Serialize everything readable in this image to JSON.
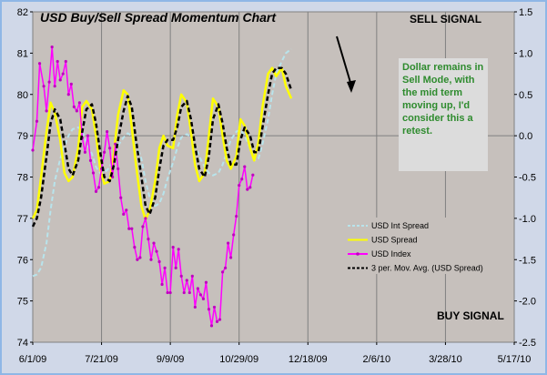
{
  "chart_data": {
    "type": "line",
    "title": "USD Buy/Sell Spread Momentum Chart",
    "annotations": {
      "sell_signal": "SELL SIGNAL",
      "buy_signal": "BUY SIGNAL",
      "note": "Dollar remains in Sell Mode, with the mid term moving up, I'd consider this a retest."
    },
    "x_tick_labels": [
      "6/1/09",
      "7/21/09",
      "9/9/09",
      "10/29/09",
      "12/18/09",
      "2/6/10",
      "3/28/10",
      "5/17/10"
    ],
    "y_left": {
      "ylim": [
        74,
        82
      ],
      "ticks": [
        74,
        75,
        76,
        77,
        78,
        79,
        80,
        81,
        82
      ]
    },
    "y_right": {
      "ylim": [
        -2.5,
        1.5
      ],
      "ticks": [
        "1.5",
        "1.0",
        "0.5",
        "0.0",
        "-0.5",
        "-1.0",
        "-1.5",
        "-2.0",
        "-2.5"
      ]
    },
    "grid": true,
    "legend_position": "center-right",
    "series": [
      {
        "name": "USD Int Spread",
        "axis": "right",
        "color": "#b8e4ec",
        "style": "dashed",
        "points": [
          [
            0,
            -1.7
          ],
          [
            3,
            -1.68
          ],
          [
            6,
            -1.6
          ],
          [
            10,
            -1.3
          ],
          [
            13,
            -0.9
          ],
          [
            16,
            -0.55
          ],
          [
            20,
            -0.28
          ],
          [
            23,
            -0.12
          ],
          [
            26,
            0.0
          ],
          [
            29,
            0.08
          ],
          [
            33,
            0.1
          ],
          [
            36,
            0.06
          ],
          [
            39,
            -0.08
          ],
          [
            43,
            -0.22
          ],
          [
            46,
            -0.38
          ],
          [
            49,
            -0.45
          ],
          [
            52,
            -0.45
          ],
          [
            56,
            -0.38
          ],
          [
            59,
            -0.25
          ],
          [
            62,
            -0.12
          ],
          [
            66,
            -0.02
          ],
          [
            69,
            0.03
          ],
          [
            72,
            0.0
          ],
          [
            75,
            -0.1
          ],
          [
            79,
            -0.28
          ],
          [
            82,
            -0.55
          ],
          [
            85,
            -0.75
          ],
          [
            89,
            -0.85
          ],
          [
            92,
            -0.82
          ],
          [
            95,
            -0.7
          ],
          [
            98,
            -0.52
          ],
          [
            102,
            -0.32
          ],
          [
            105,
            -0.15
          ],
          [
            108,
            -0.02
          ],
          [
            112,
            0.02
          ],
          [
            115,
            -0.02
          ],
          [
            118,
            -0.12
          ],
          [
            121,
            -0.25
          ],
          [
            125,
            -0.38
          ],
          [
            128,
            -0.45
          ],
          [
            131,
            -0.48
          ],
          [
            135,
            -0.45
          ],
          [
            138,
            -0.35
          ],
          [
            141,
            -0.2
          ],
          [
            144,
            -0.05
          ],
          [
            148,
            0.05
          ],
          [
            151,
            0.07
          ],
          [
            154,
            0.0
          ],
          [
            158,
            -0.15
          ],
          [
            161,
            -0.3
          ],
          [
            164,
            -0.28
          ],
          [
            167,
            -0.1
          ],
          [
            171,
            0.2
          ],
          [
            174,
            0.5
          ],
          [
            177,
            0.75
          ],
          [
            181,
            0.9
          ],
          [
            184,
            1.0
          ],
          [
            188,
            1.05
          ]
        ]
      },
      {
        "name": "USD Spread",
        "axis": "right",
        "color": "#ffff00",
        "style": "solid",
        "points": [
          [
            0,
            -1.0
          ],
          [
            3,
            -0.9
          ],
          [
            6,
            -0.5
          ],
          [
            10,
            0.05
          ],
          [
            13,
            0.4
          ],
          [
            16,
            0.28
          ],
          [
            20,
            -0.05
          ],
          [
            23,
            -0.45
          ],
          [
            26,
            -0.55
          ],
          [
            29,
            -0.5
          ],
          [
            33,
            -0.15
          ],
          [
            36,
            0.35
          ],
          [
            39,
            0.42
          ],
          [
            43,
            0.32
          ],
          [
            46,
            0.0
          ],
          [
            49,
            -0.4
          ],
          [
            52,
            -0.58
          ],
          [
            56,
            -0.55
          ],
          [
            59,
            -0.2
          ],
          [
            62,
            0.25
          ],
          [
            66,
            0.55
          ],
          [
            69,
            0.5
          ],
          [
            72,
            0.1
          ],
          [
            75,
            -0.35
          ],
          [
            79,
            -0.85
          ],
          [
            82,
            -1.02
          ],
          [
            85,
            -0.9
          ],
          [
            89,
            -0.55
          ],
          [
            92,
            -0.15
          ],
          [
            95,
            0.0
          ],
          [
            98,
            -0.12
          ],
          [
            102,
            -0.15
          ],
          [
            105,
            0.25
          ],
          [
            108,
            0.5
          ],
          [
            112,
            0.4
          ],
          [
            115,
            0.05
          ],
          [
            118,
            -0.35
          ],
          [
            121,
            -0.55
          ],
          [
            125,
            -0.45
          ],
          [
            128,
            0.0
          ],
          [
            131,
            0.45
          ],
          [
            135,
            0.35
          ],
          [
            138,
            0.0
          ],
          [
            141,
            -0.3
          ],
          [
            144,
            -0.4
          ],
          [
            148,
            -0.25
          ],
          [
            151,
            0.2
          ],
          [
            154,
            0.12
          ],
          [
            158,
            -0.15
          ],
          [
            161,
            -0.3
          ],
          [
            164,
            -0.08
          ],
          [
            167,
            0.35
          ],
          [
            171,
            0.75
          ],
          [
            174,
            0.82
          ],
          [
            177,
            0.72
          ],
          [
            181,
            0.82
          ],
          [
            184,
            0.6
          ],
          [
            188,
            0.45
          ]
        ]
      },
      {
        "name": "USD Index",
        "axis": "left",
        "color": "#ff00ff",
        "style": "solid-markers",
        "points": [
          [
            0,
            78.65
          ],
          [
            3,
            79.35
          ],
          [
            5,
            80.75
          ],
          [
            8,
            80.2
          ],
          [
            10,
            79.6
          ],
          [
            12,
            80.3
          ],
          [
            14,
            81.15
          ],
          [
            16,
            80.2
          ],
          [
            18,
            80.8
          ],
          [
            20,
            80.35
          ],
          [
            22,
            80.5
          ],
          [
            24,
            80.8
          ],
          [
            26,
            80.0
          ],
          [
            28,
            80.25
          ],
          [
            30,
            79.7
          ],
          [
            32,
            79.6
          ],
          [
            34,
            79.8
          ],
          [
            36,
            78.95
          ],
          [
            38,
            78.6
          ],
          [
            40,
            79.0
          ],
          [
            42,
            78.4
          ],
          [
            44,
            78.1
          ],
          [
            46,
            77.65
          ],
          [
            48,
            77.75
          ],
          [
            50,
            78.2
          ],
          [
            52,
            78.6
          ],
          [
            54,
            79.1
          ],
          [
            56,
            78.7
          ],
          [
            58,
            78.0
          ],
          [
            60,
            78.8
          ],
          [
            62,
            78.2
          ],
          [
            64,
            77.5
          ],
          [
            66,
            77.1
          ],
          [
            68,
            77.2
          ],
          [
            70,
            76.75
          ],
          [
            72,
            76.75
          ],
          [
            74,
            76.3
          ],
          [
            76,
            76.0
          ],
          [
            78,
            76.05
          ],
          [
            80,
            76.8
          ],
          [
            82,
            77.0
          ],
          [
            84,
            76.5
          ],
          [
            86,
            76.0
          ],
          [
            88,
            76.4
          ],
          [
            90,
            76.2
          ],
          [
            92,
            75.95
          ],
          [
            94,
            75.4
          ],
          [
            96,
            75.8
          ],
          [
            98,
            75.2
          ],
          [
            100,
            75.2
          ],
          [
            102,
            76.3
          ],
          [
            104,
            75.8
          ],
          [
            106,
            76.25
          ],
          [
            108,
            75.6
          ],
          [
            110,
            75.2
          ],
          [
            112,
            75.5
          ],
          [
            114,
            75.2
          ],
          [
            116,
            75.6
          ],
          [
            118,
            74.85
          ],
          [
            120,
            75.3
          ],
          [
            122,
            75.15
          ],
          [
            124,
            75.05
          ],
          [
            126,
            75.45
          ],
          [
            128,
            74.8
          ],
          [
            130,
            74.4
          ],
          [
            132,
            74.85
          ],
          [
            134,
            74.5
          ],
          [
            136,
            74.55
          ],
          [
            138,
            75.7
          ],
          [
            140,
            75.8
          ],
          [
            142,
            76.4
          ],
          [
            144,
            76.05
          ],
          [
            146,
            76.6
          ],
          [
            148,
            77.05
          ],
          [
            150,
            77.8
          ],
          [
            152,
            77.95
          ],
          [
            154,
            78.25
          ],
          [
            156,
            77.7
          ],
          [
            158,
            77.75
          ],
          [
            160,
            78.05
          ]
        ]
      },
      {
        "name": "3 per. Mov. Avg. (USD Spread)",
        "axis": "right",
        "color": "#000000",
        "style": "dashed",
        "points": [
          [
            0,
            -1.1
          ],
          [
            3,
            -1.0
          ],
          [
            6,
            -0.75
          ],
          [
            10,
            -0.25
          ],
          [
            13,
            0.15
          ],
          [
            16,
            0.32
          ],
          [
            20,
            0.2
          ],
          [
            23,
            -0.1
          ],
          [
            26,
            -0.4
          ],
          [
            29,
            -0.48
          ],
          [
            33,
            -0.3
          ],
          [
            36,
            0.05
          ],
          [
            39,
            0.32
          ],
          [
            43,
            0.38
          ],
          [
            46,
            0.15
          ],
          [
            49,
            -0.2
          ],
          [
            52,
            -0.5
          ],
          [
            56,
            -0.55
          ],
          [
            59,
            -0.35
          ],
          [
            62,
            -0.05
          ],
          [
            66,
            0.3
          ],
          [
            69,
            0.48
          ],
          [
            72,
            0.35
          ],
          [
            75,
            -0.05
          ],
          [
            79,
            -0.5
          ],
          [
            82,
            -0.85
          ],
          [
            85,
            -0.95
          ],
          [
            89,
            -0.75
          ],
          [
            92,
            -0.4
          ],
          [
            95,
            -0.12
          ],
          [
            98,
            -0.05
          ],
          [
            102,
            -0.05
          ],
          [
            105,
            0.1
          ],
          [
            108,
            0.35
          ],
          [
            112,
            0.42
          ],
          [
            115,
            0.2
          ],
          [
            118,
            -0.12
          ],
          [
            121,
            -0.4
          ],
          [
            125,
            -0.5
          ],
          [
            128,
            -0.25
          ],
          [
            131,
            0.2
          ],
          [
            135,
            0.38
          ],
          [
            138,
            0.15
          ],
          [
            141,
            -0.15
          ],
          [
            144,
            -0.35
          ],
          [
            148,
            -0.35
          ],
          [
            151,
            -0.05
          ],
          [
            154,
            0.1
          ],
          [
            158,
            0.0
          ],
          [
            161,
            -0.2
          ],
          [
            164,
            -0.2
          ],
          [
            167,
            0.1
          ],
          [
            171,
            0.5
          ],
          [
            174,
            0.75
          ],
          [
            177,
            0.82
          ],
          [
            181,
            0.82
          ],
          [
            184,
            0.75
          ],
          [
            188,
            0.55
          ]
        ]
      }
    ]
  }
}
